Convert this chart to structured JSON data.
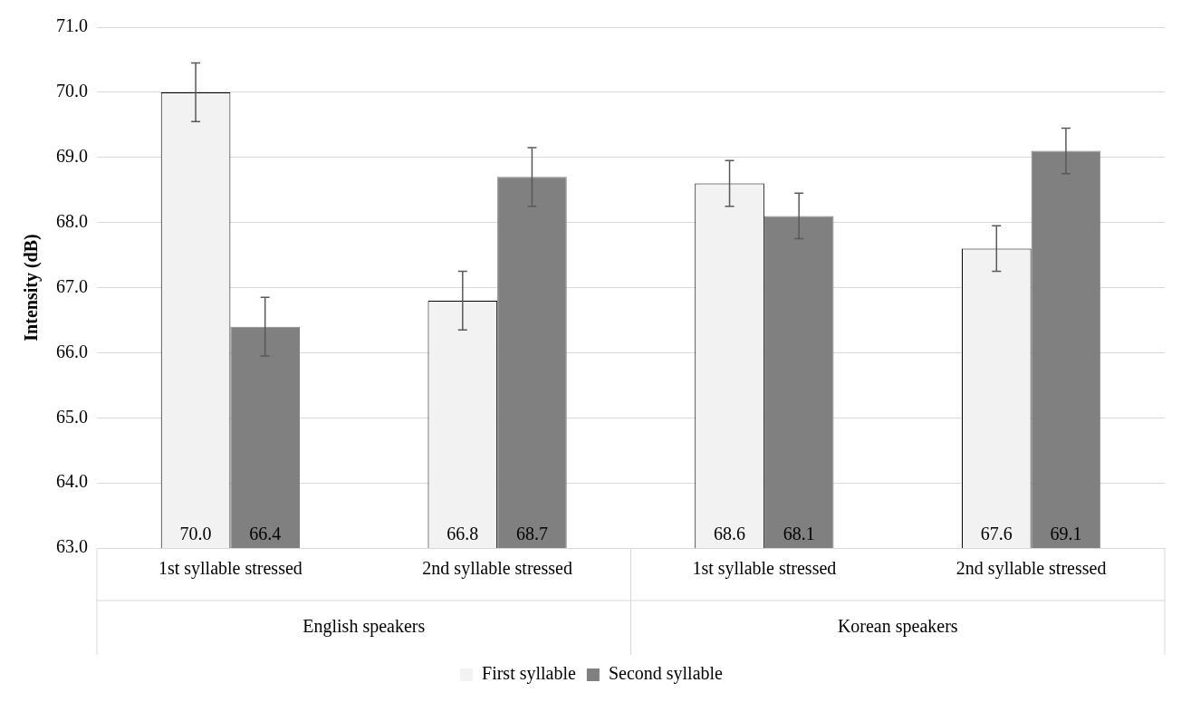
{
  "chart_data": {
    "type": "bar",
    "ylabel": "Intensity (dB)",
    "categories": [
      "1st syllable stressed",
      "2nd syllable stressed",
      "1st syllable stressed",
      "2nd syllable stressed"
    ],
    "series": [
      {
        "name": "First syllable",
        "color": "#f2f2f2",
        "values": [
          70.0,
          66.8,
          68.6,
          67.6
        ],
        "errors": [
          0.45,
          0.45,
          0.35,
          0.35
        ],
        "value_labels": [
          "70.0",
          "66.8",
          "68.6",
          "67.6"
        ]
      },
      {
        "name": "Second syllable",
        "color": "#808080",
        "values": [
          66.4,
          68.7,
          68.1,
          69.1
        ],
        "errors": [
          0.45,
          0.45,
          0.35,
          0.35
        ],
        "value_labels": [
          "66.4",
          "68.7",
          "68.1",
          "69.1"
        ]
      }
    ],
    "annotations": [
      "English speakers",
      "Korean speakers"
    ],
    "ylim": [
      63,
      71
    ],
    "yticks": [
      {
        "value": 63,
        "label": "63.0"
      },
      {
        "value": 64,
        "label": "64.0"
      },
      {
        "value": 65,
        "label": "65.0"
      },
      {
        "value": 66,
        "label": "66.0"
      },
      {
        "value": 67,
        "label": "67.0"
      },
      {
        "value": 68,
        "label": "68.0"
      },
      {
        "value": 69,
        "label": "69.0"
      },
      {
        "value": 70,
        "label": "70.0"
      },
      {
        "value": 71,
        "label": "71.0"
      }
    ],
    "grid": "y",
    "legend": "bottom"
  }
}
